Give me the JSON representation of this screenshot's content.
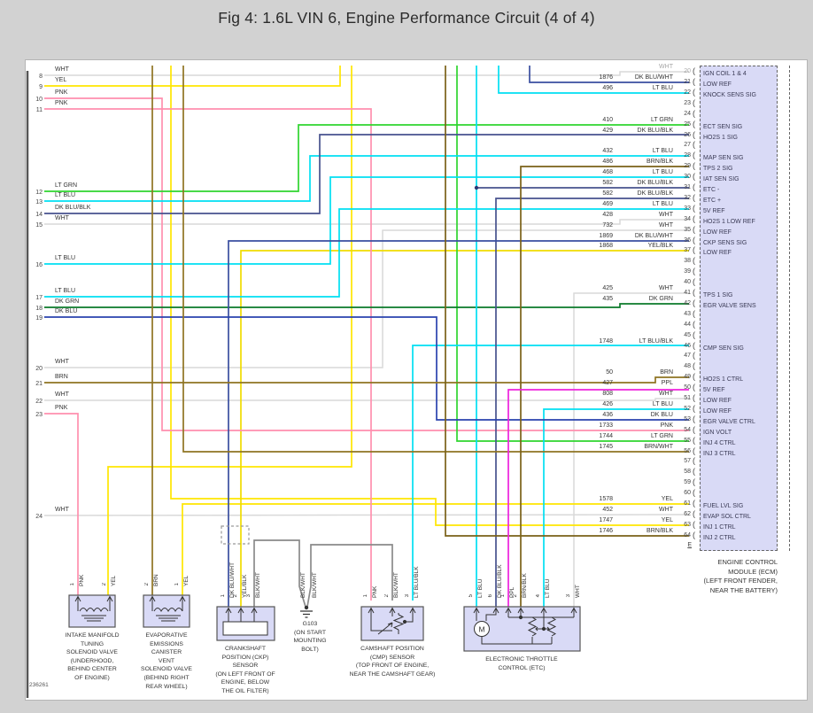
{
  "title": "Fig 4: 1.6L VIN 6, Engine Performance Circuit (4 of 4)",
  "diagram_number": "236261",
  "colors": {
    "WHT": "#d9d9d9",
    "YEL": "#ffe600",
    "YEL/BLK": "#f0dc00",
    "PNK": "#ff8fae",
    "LT GRN": "#2fd52f",
    "LT BLU": "#00dff2",
    "LT BLU/BLK": "#00dff2",
    "DK BLU": "#2a43ae",
    "DK BLU/BLK": "#47528e",
    "DK BLU/WHT": "#3a4fa0",
    "DK GRN": "#0b7a2a",
    "BRN": "#8f7422",
    "BRN/BLK": "#7a6118",
    "BRN/WHT": "#8f7422",
    "PPL": "#ee22dd",
    "BLK/WHT": "#8a8a8a",
    "box_fill": "#d9daf6"
  },
  "left_connector": {
    "pins": [
      {
        "pin": "8",
        "color": "WHT"
      },
      {
        "pin": "9",
        "color": "YEL"
      },
      {
        "pin": "10",
        "color": "PNK"
      },
      {
        "pin": "11",
        "color": "PNK"
      },
      {
        "pin": "12",
        "color": "LT GRN"
      },
      {
        "pin": "13",
        "color": "LT BLU"
      },
      {
        "pin": "14",
        "color": "DK BLU/BLK"
      },
      {
        "pin": "15",
        "color": "WHT"
      },
      {
        "pin": "16",
        "color": "LT BLU"
      },
      {
        "pin": "17",
        "color": "LT BLU"
      },
      {
        "pin": "18",
        "color": "DK GRN"
      },
      {
        "pin": "19",
        "color": "DK BLU"
      },
      {
        "pin": "20",
        "color": "WHT"
      },
      {
        "pin": "21",
        "color": "BRN"
      },
      {
        "pin": "22",
        "color": "WHT"
      },
      {
        "pin": "23",
        "color": "PNK"
      },
      {
        "pin": "24",
        "color": "WHT"
      }
    ]
  },
  "ecm": {
    "name_lines": "ENGINE CONTROL\nMODULE (ECM)\n(LEFT FRONT FENDER,\nNEAR THE BATTERY)",
    "connector_letter": "E",
    "pins": [
      {
        "pin": "20",
        "wire": "",
        "color": "WHT",
        "label": "IGN COIL 1 & 4"
      },
      {
        "pin": "21",
        "wire": "1876",
        "color": "DK BLU/WHT",
        "label": "LOW REF"
      },
      {
        "pin": "22",
        "wire": "496",
        "color": "LT BLU",
        "label": "KNOCK SENS SIG"
      },
      {
        "pin": "23",
        "wire": "",
        "color": "",
        "label": ""
      },
      {
        "pin": "24",
        "wire": "",
        "color": "",
        "label": ""
      },
      {
        "pin": "25",
        "wire": "410",
        "color": "LT GRN",
        "label": "ECT SEN SIG"
      },
      {
        "pin": "26",
        "wire": "429",
        "color": "DK BLU/BLK",
        "label": "HO2S 1 SIG"
      },
      {
        "pin": "27",
        "wire": "",
        "color": "",
        "label": ""
      },
      {
        "pin": "28",
        "wire": "432",
        "color": "LT BLU",
        "label": "MAP SEN SIG"
      },
      {
        "pin": "29",
        "wire": "486",
        "color": "BRN/BLK",
        "label": "TPS 2 SIG"
      },
      {
        "pin": "30",
        "wire": "468",
        "color": "LT BLU",
        "label": "IAT SEN SIG"
      },
      {
        "pin": "31",
        "wire": "582",
        "color": "DK BLU/BLK",
        "label": "ETC -"
      },
      {
        "pin": "32",
        "wire": "582",
        "color": "DK BLU/BLK",
        "label": "ETC +"
      },
      {
        "pin": "33",
        "wire": "469",
        "color": "LT BLU",
        "label": "5V REF"
      },
      {
        "pin": "34",
        "wire": "428",
        "color": "WHT",
        "label": "HO2S 1 LOW REF"
      },
      {
        "pin": "35",
        "wire": "732",
        "color": "WHT",
        "label": "LOW REF"
      },
      {
        "pin": "36",
        "wire": "1869",
        "color": "DK BLU/WHT",
        "label": "CKP SENS SIG"
      },
      {
        "pin": "37",
        "wire": "1868",
        "color": "YEL/BLK",
        "label": "LOW REF"
      },
      {
        "pin": "38",
        "wire": "",
        "color": "",
        "label": ""
      },
      {
        "pin": "39",
        "wire": "",
        "color": "",
        "label": ""
      },
      {
        "pin": "40",
        "wire": "",
        "color": "",
        "label": ""
      },
      {
        "pin": "41",
        "wire": "425",
        "color": "WHT",
        "label": "TPS 1 SIG"
      },
      {
        "pin": "42",
        "wire": "435",
        "color": "DK GRN",
        "label": "EGR VALVE SENS"
      },
      {
        "pin": "43",
        "wire": "",
        "color": "",
        "label": ""
      },
      {
        "pin": "44",
        "wire": "",
        "color": "",
        "label": ""
      },
      {
        "pin": "45",
        "wire": "",
        "color": "",
        "label": ""
      },
      {
        "pin": "46",
        "wire": "1748",
        "color": "LT BLU/BLK",
        "label": "CMP SEN SIG"
      },
      {
        "pin": "47",
        "wire": "",
        "color": "",
        "label": ""
      },
      {
        "pin": "48",
        "wire": "",
        "color": "",
        "label": ""
      },
      {
        "pin": "49",
        "wire": "50",
        "color": "BRN",
        "label": "HO2S 1 CTRL"
      },
      {
        "pin": "50",
        "wire": "427",
        "color": "PPL",
        "label": "5V REF"
      },
      {
        "pin": "51",
        "wire": "808",
        "color": "WHT",
        "label": "LOW REF"
      },
      {
        "pin": "52",
        "wire": "426",
        "color": "LT BLU",
        "label": "LOW REF"
      },
      {
        "pin": "53",
        "wire": "436",
        "color": "DK BLU",
        "label": "EGR VALVE CTRL"
      },
      {
        "pin": "54",
        "wire": "1733",
        "color": "PNK",
        "label": "IGN VOLT"
      },
      {
        "pin": "55",
        "wire": "1744",
        "color": "LT GRN",
        "label": "INJ 4 CTRL"
      },
      {
        "pin": "56",
        "wire": "1745",
        "color": "BRN/WHT",
        "label": "INJ 3 CTRL"
      },
      {
        "pin": "57",
        "wire": "",
        "color": "",
        "label": ""
      },
      {
        "pin": "58",
        "wire": "",
        "color": "",
        "label": ""
      },
      {
        "pin": "59",
        "wire": "",
        "color": "",
        "label": ""
      },
      {
        "pin": "60",
        "wire": "",
        "color": "",
        "label": ""
      },
      {
        "pin": "61",
        "wire": "1578",
        "color": "YEL",
        "label": "FUEL LVL SIG"
      },
      {
        "pin": "62",
        "wire": "452",
        "color": "WHT",
        "label": "EVAP SOL CTRL"
      },
      {
        "pin": "63",
        "wire": "1747",
        "color": "YEL",
        "label": "INJ 1 CTRL"
      },
      {
        "pin": "64",
        "wire": "1746",
        "color": "BRN/BLK",
        "label": "INJ 2 CTRL"
      }
    ]
  },
  "components": [
    {
      "id": "intake-manifold-tuning-solenoid-valve",
      "pins": [
        {
          "pin": "1",
          "color": "PNK"
        },
        {
          "pin": "2",
          "color": "YEL"
        }
      ],
      "name_lines": "INTAKE MANIFOLD\nTUNING\nSOLENOID VALVE\n(UNDERHOOD,\nBEHIND CENTER\nOF ENGINE)"
    },
    {
      "id": "evap-canister-vent-solenoid-valve",
      "pins": [
        {
          "pin": "2",
          "color": "BRN"
        },
        {
          "pin": "1",
          "color": "YEL"
        }
      ],
      "name_lines": "EVAPORATIVE\nEMISSIONS\nCANISTER\nVENT\nSOLENOID VALVE\n(BEHIND RIGHT\nREAR WHEEL)"
    },
    {
      "id": "crankshaft-position-ckp-sensor",
      "pins": [
        {
          "pin": "1",
          "color": "DK BLU/WHT"
        },
        {
          "pin": "2",
          "color": "YEL/BLK"
        },
        {
          "pin": "3",
          "color": "BLK/WHT"
        }
      ],
      "name_lines": "CRANKSHAFT\nPOSITION (CKP)\nSENSOR\n(ON LEFT FRONT OF\nENGINE, BELOW\nTHE OIL FILTER)"
    },
    {
      "id": "g103-ground",
      "pins": [
        {
          "pin": "",
          "color": "BLK/WHT"
        },
        {
          "pin": "",
          "color": "BLK/WHT"
        }
      ],
      "name_lines": "G103\n(ON START\nMOUNTING\nBOLT)"
    },
    {
      "id": "camshaft-position-cmp-sensor",
      "pins": [
        {
          "pin": "1",
          "color": "PNK"
        },
        {
          "pin": "2",
          "color": "BLK/WHT"
        },
        {
          "pin": "3",
          "color": "LT BLU/BLK"
        }
      ],
      "name_lines": "CAMSHAFT POSITION\n(CMP) SENSOR\n(TOP FRONT OF ENGINE,\nNEAR THE CAMSHAFT GEAR)"
    },
    {
      "id": "electronic-throttle-control",
      "pins": [
        {
          "pin": "5",
          "color": "LT BLU"
        },
        {
          "pin": "6",
          "color": "DK BLU/BLK"
        },
        {
          "pin": "1",
          "color": "PPL"
        },
        {
          "pin": "2",
          "color": "BRN/BLK"
        },
        {
          "pin": "4",
          "color": "LT BLU"
        },
        {
          "pin": "3",
          "color": "WHT"
        }
      ],
      "name_lines": "ELECTRONIC THROTTLE\nCONTROL (ETC)"
    }
  ]
}
